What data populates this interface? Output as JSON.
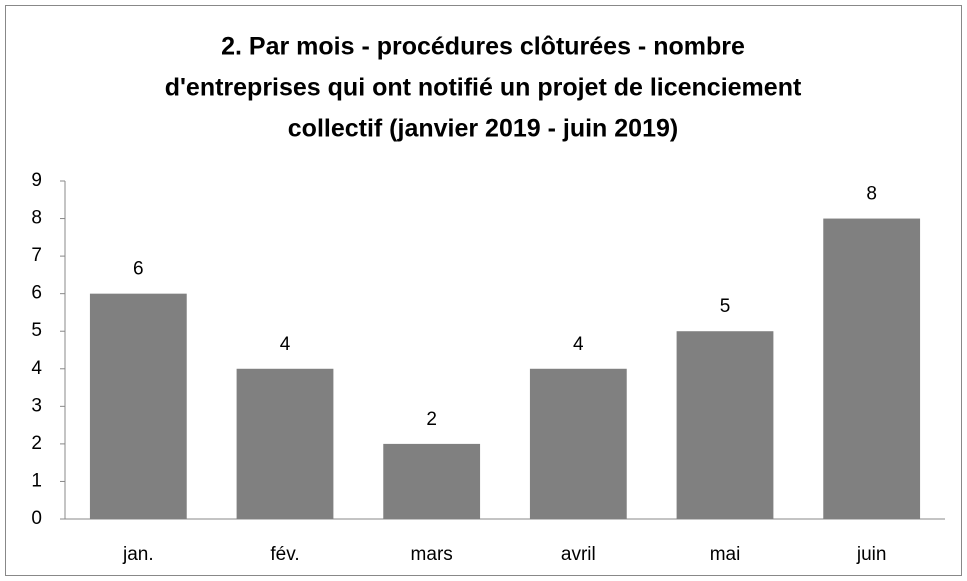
{
  "chart_data": {
    "type": "bar",
    "title": [
      "2. Par mois - procédures clôturées -  nombre",
      "d'entreprises qui ont notifié un projet de licenciement",
      "collectif (janvier 2019 - juin 2019)"
    ],
    "categories": [
      "jan.",
      "fév.",
      "mars",
      "avril",
      "mai",
      "juin"
    ],
    "values": [
      6,
      4,
      2,
      4,
      5,
      8
    ],
    "color": "#808080",
    "ylim": [
      0,
      9
    ],
    "yticks": [
      0,
      1,
      2,
      3,
      4,
      5,
      6,
      7,
      8,
      9
    ],
    "grid": false
  }
}
